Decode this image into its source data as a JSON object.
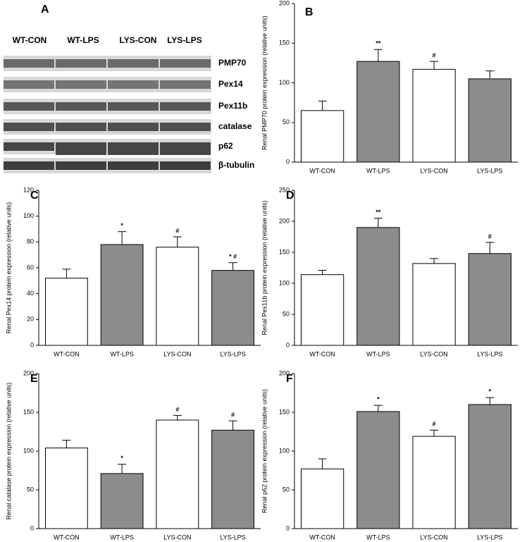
{
  "blot": {
    "panel_label": "A",
    "groups": [
      "WT-CON",
      "WT-LPS",
      "LYS-CON",
      "LYS-LPS"
    ],
    "proteins": [
      "PMP70",
      "Pex14",
      "Pex11b",
      "catalase",
      "p62",
      "β-tubulin"
    ]
  },
  "chart_data": [
    {
      "type": "bar",
      "panel_label": "B",
      "ylabel": "Renal PMP70 protein expression (relative units)",
      "categories": [
        "WT-CON",
        "WT-LPS",
        "LYS-CON",
        "LYS-LPS"
      ],
      "values": [
        65,
        127,
        117,
        105
      ],
      "errors": [
        12,
        15,
        10,
        10
      ],
      "annotations": [
        null,
        "**",
        "#",
        null
      ],
      "colors": [
        "#ffffff",
        "#8c8c8c",
        "#ffffff",
        "#8c8c8c"
      ],
      "ylim": [
        0,
        200
      ],
      "yticks": [
        0,
        50,
        100,
        150,
        200
      ]
    },
    {
      "type": "bar",
      "panel_label": "C",
      "ylabel": "Renal Pex14 protein expression (relative units)",
      "categories": [
        "WT-CON",
        "WT-LPS",
        "LYS-CON",
        "LYS-LPS"
      ],
      "values": [
        52,
        78,
        76,
        58
      ],
      "errors": [
        7,
        10,
        8,
        6
      ],
      "annotations": [
        null,
        "*",
        "#",
        "* #"
      ],
      "colors": [
        "#ffffff",
        "#8c8c8c",
        "#ffffff",
        "#8c8c8c"
      ],
      "ylim": [
        0,
        120
      ],
      "yticks": [
        0,
        20,
        40,
        60,
        80,
        100,
        120
      ]
    },
    {
      "type": "bar",
      "panel_label": "D",
      "ylabel": "Renal Pex11b protein expression (relative units)",
      "categories": [
        "WT-CON",
        "WT-LPS",
        "LYS-CON",
        "LYS-LPS"
      ],
      "values": [
        114,
        190,
        132,
        148
      ],
      "errors": [
        7,
        15,
        8,
        18
      ],
      "annotations": [
        null,
        "**",
        null,
        "#"
      ],
      "colors": [
        "#ffffff",
        "#8c8c8c",
        "#ffffff",
        "#8c8c8c"
      ],
      "ylim": [
        0,
        250
      ],
      "yticks": [
        0,
        50,
        100,
        150,
        200,
        250
      ]
    },
    {
      "type": "bar",
      "panel_label": "E",
      "ylabel": "Renal catalase protein expression (relative units)",
      "categories": [
        "WT-CON",
        "WT-LPS",
        "LYS-CON",
        "LYS-LPS"
      ],
      "values": [
        104,
        71,
        140,
        127
      ],
      "errors": [
        10,
        12,
        6,
        12
      ],
      "annotations": [
        null,
        "*",
        "#",
        "#"
      ],
      "colors": [
        "#ffffff",
        "#8c8c8c",
        "#ffffff",
        "#8c8c8c"
      ],
      "ylim": [
        0,
        200
      ],
      "yticks": [
        0,
        50,
        100,
        150,
        200
      ]
    },
    {
      "type": "bar",
      "panel_label": "F",
      "ylabel": "Renal p62 protein expression (relative units)",
      "categories": [
        "WT-CON",
        "WT-LPS",
        "LYS-CON",
        "LYS-LPS"
      ],
      "values": [
        77,
        151,
        119,
        160
      ],
      "errors": [
        13,
        8,
        8,
        9
      ],
      "annotations": [
        null,
        "*",
        "#",
        "*"
      ],
      "colors": [
        "#ffffff",
        "#8c8c8c",
        "#ffffff",
        "#8c8c8c"
      ],
      "ylim": [
        0,
        200
      ],
      "yticks": [
        0,
        50,
        100,
        150,
        200
      ]
    }
  ]
}
